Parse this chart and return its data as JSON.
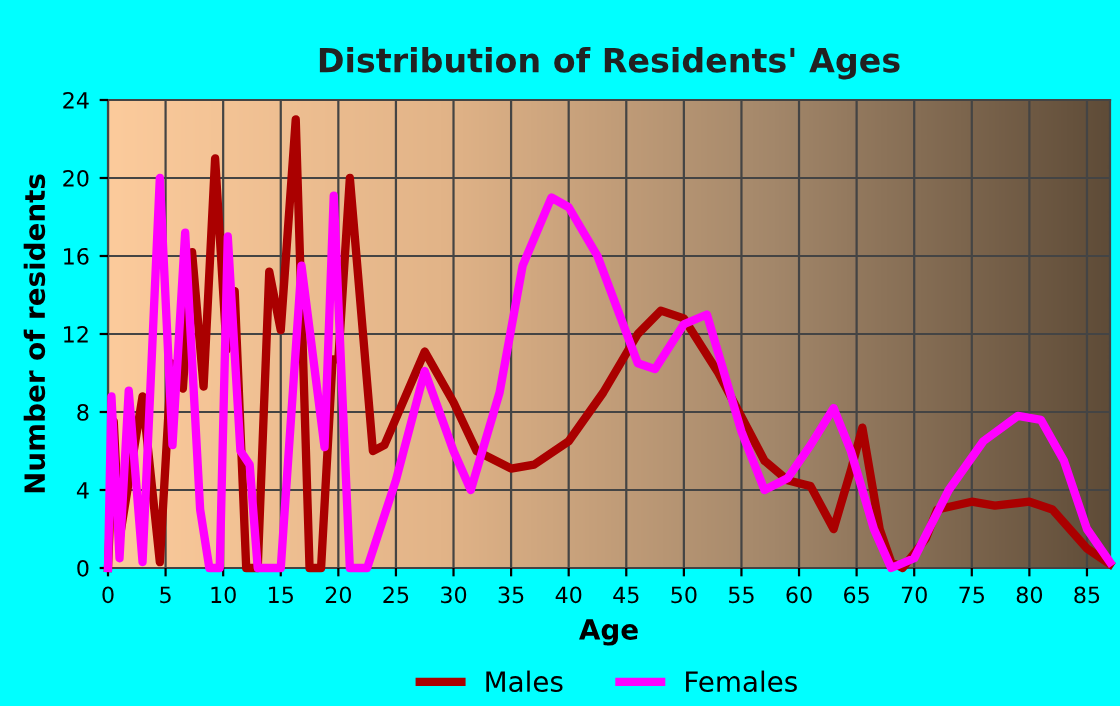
{
  "chart_data": {
    "type": "line",
    "title": "Distribution of Residents' Ages",
    "xlabel": "Age",
    "ylabel": "Number of residents",
    "xlim": [
      0,
      87
    ],
    "xticks": [
      0,
      5,
      10,
      15,
      20,
      25,
      30,
      35,
      40,
      45,
      50,
      55,
      60,
      65,
      70,
      75,
      80,
      85
    ],
    "ylim": [
      0,
      24
    ],
    "yticks": [
      0,
      4,
      8,
      12,
      16,
      20,
      24
    ],
    "grid": true,
    "legend": "bottom",
    "marker": "none",
    "line_style": "solid",
    "series": [
      {
        "name": "Males",
        "color": "#aa0000",
        "x": [
          0,
          0.5,
          1,
          3,
          4.5,
          5.5,
          6.5,
          7.3,
          8.3,
          9.3,
          10.3,
          11,
          12,
          13,
          14,
          15,
          16.3,
          17.5,
          18.5,
          19.5,
          20,
          21,
          23,
          24,
          27.5,
          30,
          32,
          35,
          37,
          40,
          43,
          46,
          48,
          50,
          53,
          57,
          59,
          61,
          63,
          64.5,
          65.5,
          67,
          68,
          69,
          71,
          72,
          75,
          77,
          80,
          82,
          85,
          87
        ],
        "values": [
          0,
          7.5,
          1.5,
          8.8,
          0.3,
          10.5,
          9.2,
          16.2,
          9.3,
          21,
          11.2,
          14.2,
          0,
          0,
          15.2,
          12.2,
          23,
          0,
          0,
          10.7,
          10.7,
          20,
          6,
          6.3,
          11.1,
          8.5,
          6,
          5.1,
          5.3,
          6.5,
          9,
          12,
          13.2,
          12.8,
          10,
          5.5,
          4.5,
          4.2,
          2,
          5,
          7.2,
          2,
          0.3,
          0,
          1.5,
          3,
          3.4,
          3.2,
          3.4,
          3,
          1,
          0.2
        ]
      },
      {
        "name": "Females",
        "color": "#ff00ff",
        "x": [
          0,
          0.3,
          1,
          1.8,
          3,
          4.5,
          5.6,
          6.7,
          8,
          8.8,
          9.7,
          10.4,
          11.5,
          12.3,
          13,
          14,
          15,
          16.8,
          18.8,
          19.6,
          21,
          22.5,
          25,
          27.5,
          30,
          31.5,
          34,
          36,
          38.5,
          40,
          42.5,
          46,
          47.5,
          50,
          52,
          55,
          57,
          59,
          61,
          63,
          64.5,
          66.5,
          68,
          70,
          73,
          76,
          79,
          81,
          83,
          85,
          87
        ],
        "values": [
          0,
          8.8,
          0.5,
          9.1,
          0.3,
          20,
          6.3,
          17.2,
          3,
          0,
          0,
          17,
          6,
          5.3,
          0,
          0,
          0,
          15.5,
          6.2,
          19.1,
          0,
          0,
          4.5,
          10.1,
          6,
          4,
          9,
          15.5,
          19,
          18.5,
          16,
          10.5,
          10.2,
          12.5,
          13,
          7,
          4,
          4.6,
          6.3,
          8.2,
          6,
          2,
          0,
          0.5,
          4,
          6.5,
          7.8,
          7.6,
          5.5,
          2,
          0.3
        ]
      }
    ]
  }
}
